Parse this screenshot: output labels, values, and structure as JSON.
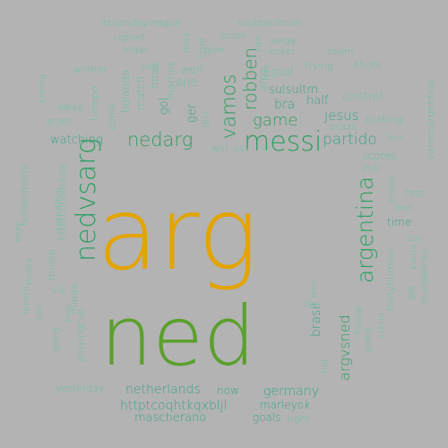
{
  "palette": {
    "background": "#b3b3b3",
    "primary_word": "#e3a400",
    "secondary_word": "#5aa02c",
    "mid_green": "#2f9e63",
    "teal": "#3aa38a",
    "light_teal": "#6bbfa6",
    "dark_green": "#2f8a55"
  },
  "words": [
    {
      "text": "arg",
      "color": "#e3a400"
    },
    {
      "text": "ned",
      "color": "#5aa02c"
    },
    {
      "text": "messi",
      "color": "#2f9e63"
    },
    {
      "text": "nedvsarg",
      "color": "#2f9e63"
    },
    {
      "text": "argentina",
      "color": "#2f9e63"
    },
    {
      "text": "nedarg",
      "color": "#2f9e63"
    },
    {
      "text": "vamos",
      "color": "#2f9e63"
    },
    {
      "text": "robben",
      "color": "#2f9e63"
    },
    {
      "text": "game",
      "color": "#2f9e63"
    },
    {
      "text": "partido",
      "color": "#3aa38a"
    },
    {
      "text": "argvsned",
      "color": "#2f9e63"
    },
    {
      "text": "netherlands",
      "color": "#3aa38a"
    },
    {
      "text": "germany",
      "color": "#3aa38a"
    },
    {
      "text": "httptcoqhtkqxbljl",
      "color": "#3aa38a"
    },
    {
      "text": "brasil",
      "color": "#3aa38a"
    },
    {
      "text": "jesus",
      "color": "#3aa38a"
    },
    {
      "text": "bra",
      "color": "#3aa38a"
    },
    {
      "text": "sulsultm",
      "color": "#3aa38a"
    },
    {
      "text": "half",
      "color": "#3aa38a"
    },
    {
      "text": "control",
      "color": "#6bbfa6"
    },
    {
      "text": "watching",
      "color": "#3aa38a"
    },
    {
      "text": "mascherano",
      "color": "#3aa38a"
    },
    {
      "text": "marleyok",
      "color": "#3aa38a"
    },
    {
      "text": "goals",
      "color": "#3aa38a"
    },
    {
      "text": "now",
      "color": "#3aa38a"
    },
    {
      "text": "right",
      "color": "#6bbfa6"
    },
    {
      "text": "yesterday",
      "color": "#6bbfa6"
    },
    {
      "text": "scores",
      "color": "#6bbfa6"
    },
    {
      "text": "time",
      "color": "#3aa38a"
    },
    {
      "text": "last",
      "color": "#6bbfa6"
    },
    {
      "text": "first",
      "color": "#6bbfa6"
    },
    {
      "text": "itssundayleague",
      "color": "#6bbfa6"
    },
    {
      "text": "footballltrolls",
      "color": "#6bbfa6"
    },
    {
      "text": "signed",
      "color": "#6bbfa6"
    },
    {
      "text": "score",
      "color": "#6bbfa6"
    },
    {
      "text": "juega",
      "color": "#6bbfa6"
    },
    {
      "text": "team",
      "color": "#6bbfa6"
    },
    {
      "text": "vlaar",
      "color": "#6bbfa6"
    },
    {
      "text": "give",
      "color": "#6bbfa6"
    },
    {
      "text": "enter",
      "color": "#6bbfa6"
    },
    {
      "text": "trying",
      "color": "#6bbfa6"
    },
    {
      "text": "ahora",
      "color": "#6bbfa6"
    },
    {
      "text": "winner",
      "color": "#6bbfa6"
    },
    {
      "text": "just",
      "color": "#6bbfa6"
    },
    {
      "text": "well",
      "color": "#6bbfa6"
    },
    {
      "text": "goal",
      "color": "#6bbfa6"
    },
    {
      "text": "one",
      "color": "#6bbfa6"
    },
    {
      "text": "gol",
      "color": "#3aa38a"
    },
    {
      "text": "ger",
      "color": "#3aa38a"
    },
    {
      "text": "nothing",
      "color": "#6bbfa6"
    },
    {
      "text": "brazil",
      "color": "#6bbfa6"
    },
    {
      "text": "live",
      "color": "#6bbfa6"
    },
    {
      "text": "win",
      "color": "#6bbfa6"
    },
    {
      "text": "usa",
      "color": "#6bbfa6"
    },
    {
      "text": "indi",
      "color": "#6bbfa6"
    },
    {
      "text": "like",
      "color": "#6bbfa6"
    },
    {
      "text": "follow",
      "color": "#6bbfa6"
    },
    {
      "text": "final",
      "color": "#6bbfa6"
    },
    {
      "text": "match",
      "color": "#6bbfa6"
    },
    {
      "text": "holanda",
      "color": "#6bbfa6"
    },
    {
      "text": "come",
      "color": "#6bbfa6"
    },
    {
      "text": "tiempo",
      "color": "#6bbfa6"
    },
    {
      "text": "away",
      "color": "#6bbfa6"
    },
    {
      "text": "arjen",
      "color": "#6bbfa6"
    },
    {
      "text": "boring",
      "color": "#6bbfa6"
    },
    {
      "text": "martins",
      "color": "#6bbfa6"
    },
    {
      "text": "mex",
      "color": "#6bbfa6"
    },
    {
      "text": "cdm",
      "color": "#6bbfa6"
    },
    {
      "text": "van",
      "color": "#6bbfa6"
    },
    {
      "text": "amp",
      "color": "#6bbfa6"
    },
    {
      "text": "lets",
      "color": "#6bbfa6"
    },
    {
      "text": "dlin",
      "color": "#6bbfa6"
    },
    {
      "text": "semifinal",
      "color": "#6bbfa6"
    },
    {
      "text": "httptcorzveazqi",
      "color": "#6bbfa6"
    },
    {
      "text": "hollandparte",
      "color": "#6bbfa6"
    },
    {
      "text": "dont",
      "color": "#6bbfa6"
    },
    {
      "text": "mundi",
      "color": "#6bbfa6"
    },
    {
      "text": "jersey",
      "color": "#6bbfa6"
    },
    {
      "text": "quiero",
      "color": "#6bbfa6"
    },
    {
      "text": "vía",
      "color": "#6bbfa6"
    },
    {
      "text": "sao",
      "color": "#6bbfa6"
    },
    {
      "text": "play",
      "color": "#6bbfa6"
    },
    {
      "text": "minda",
      "color": "#6bbfa6"
    },
    {
      "text": "going",
      "color": "#6bbfa6"
    },
    {
      "text": "playingcup",
      "color": "#6bbfa6"
    },
    {
      "text": "bruno",
      "color": "#6bbfa6"
    },
    {
      "text": "can",
      "color": "#6bbfa6"
    },
    {
      "text": "paulo",
      "color": "#6bbfa6"
    },
    {
      "text": "get",
      "color": "#6bbfa6"
    },
    {
      "text": "footyhumour",
      "color": "#6bbfa6"
    },
    {
      "text": "mundialvivo",
      "color": "#6bbfa6"
    },
    {
      "text": "clasie",
      "color": "#6bbfa6"
    },
    {
      "text": "pidho",
      "color": "#6bbfa6"
    },
    {
      "text": "vamosargentina",
      "color": "#6bbfa6"
    },
    {
      "text": "min",
      "color": "#6bbfa6"
    },
    {
      "text": "hol",
      "color": "#6bbfa6"
    }
  ]
}
